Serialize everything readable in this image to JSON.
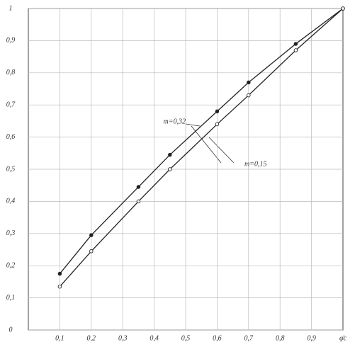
{
  "chart_data": {
    "type": "line",
    "x_label": "φ̄c",
    "x": [
      0.1,
      0.2,
      0.35,
      0.45,
      0.6,
      0.7,
      0.85,
      1
    ],
    "series": [
      {
        "name": "m=0,32",
        "color": "#222",
        "marker": "filled",
        "values": [
          0.175,
          0.295,
          0.445,
          0.545,
          0.68,
          0.77,
          0.89,
          1
        ]
      },
      {
        "name": "m=0,15",
        "color": "#222",
        "marker": "open",
        "values": [
          0.135,
          0.245,
          0.4,
          0.5,
          0.64,
          0.73,
          0.87,
          1
        ]
      }
    ],
    "xlim": [
      0,
      1
    ],
    "ylim": [
      0,
      1
    ],
    "xticks": [
      {
        "value": 0.1,
        "label": "0,1"
      },
      {
        "value": 0.2,
        "label": "0,2"
      },
      {
        "value": 0.3,
        "label": "0,3"
      },
      {
        "value": 0.4,
        "label": "0,4"
      },
      {
        "value": 0.5,
        "label": "0,5"
      },
      {
        "value": 0.6,
        "label": "0,6"
      },
      {
        "value": 0.7,
        "label": "0,7"
      },
      {
        "value": 0.8,
        "label": "0,8"
      },
      {
        "value": 0.9,
        "label": "0,9"
      }
    ],
    "yticks": [
      0,
      {
        "value": 0.1,
        "label": "0,1"
      },
      {
        "value": 0.2,
        "label": "0,2"
      },
      {
        "value": 0.3,
        "label": "0,3"
      },
      {
        "value": 0.4,
        "label": "0,4"
      },
      {
        "value": 0.5,
        "label": "0,5"
      },
      {
        "value": 0.6,
        "label": "0,6"
      },
      {
        "value": 0.7,
        "label": "0,7"
      },
      {
        "value": 0.8,
        "label": "0,8"
      },
      {
        "value": 0.9,
        "label": "0,9"
      },
      1
    ],
    "grid": true
  }
}
